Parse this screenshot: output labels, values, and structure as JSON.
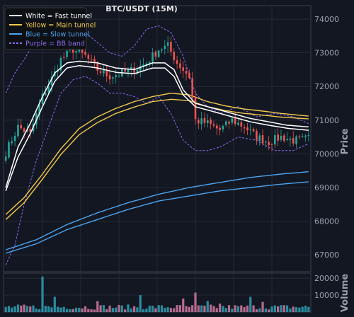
{
  "chart_data": {
    "type": "line",
    "title": "BTC/USDT (15M)",
    "ylabel": "Price",
    "ylabel_volume": "Volume",
    "ylim": [
      66500,
      74400
    ],
    "yticks": [
      67000,
      68000,
      69000,
      70000,
      71000,
      72000,
      73000,
      74000
    ],
    "vol_ylim": [
      0,
      23000
    ],
    "vol_yticks": [
      10000,
      20000
    ],
    "n_points": 100,
    "grid": true,
    "legend_position": "top-left",
    "legend": [
      {
        "label": "White = Fast tunnel",
        "color": "#ffffff",
        "style": "solid"
      },
      {
        "label": "Yellow = Main tunnel",
        "color": "#f2c94c",
        "style": "solid"
      },
      {
        "label": "Blue = Slow tunnel",
        "color": "#4da3ee",
        "style": "solid"
      },
      {
        "label": "Purple = BB band",
        "color": "#8b6cf0",
        "style": "dashed"
      }
    ],
    "close_anchors": [
      [
        0,
        70050
      ],
      [
        4,
        70800
      ],
      [
        8,
        70600
      ],
      [
        12,
        71700
      ],
      [
        16,
        72400
      ],
      [
        18,
        72800
      ],
      [
        22,
        73100
      ],
      [
        26,
        72900
      ],
      [
        30,
        72500
      ],
      [
        34,
        72300
      ],
      [
        38,
        72400
      ],
      [
        42,
        72500
      ],
      [
        46,
        72700
      ],
      [
        50,
        73100
      ],
      [
        53,
        73200
      ],
      [
        56,
        72700
      ],
      [
        60,
        72300
      ],
      [
        62,
        71000
      ],
      [
        66,
        70900
      ],
      [
        70,
        70700
      ],
      [
        74,
        71000
      ],
      [
        78,
        70800
      ],
      [
        82,
        70500
      ],
      [
        86,
        70350
      ],
      [
        90,
        70500
      ],
      [
        94,
        70400
      ],
      [
        99,
        70450
      ]
    ],
    "fast_upper": [
      [
        0,
        69000
      ],
      [
        4,
        70200
      ],
      [
        8,
        70900
      ],
      [
        12,
        71700
      ],
      [
        16,
        72400
      ],
      [
        20,
        72700
      ],
      [
        24,
        72750
      ],
      [
        30,
        72700
      ],
      [
        36,
        72550
      ],
      [
        42,
        72500
      ],
      [
        48,
        72700
      ],
      [
        52,
        72700
      ],
      [
        55,
        72500
      ],
      [
        58,
        71900
      ],
      [
        62,
        71500
      ],
      [
        68,
        71350
      ],
      [
        74,
        71200
      ],
      [
        80,
        71050
      ],
      [
        86,
        70950
      ],
      [
        92,
        70850
      ],
      [
        99,
        70800
      ]
    ],
    "fast_lower": [
      [
        0,
        68900
      ],
      [
        4,
        69900
      ],
      [
        8,
        70600
      ],
      [
        12,
        71400
      ],
      [
        16,
        72150
      ],
      [
        20,
        72550
      ],
      [
        24,
        72620
      ],
      [
        30,
        72550
      ],
      [
        36,
        72420
      ],
      [
        42,
        72380
      ],
      [
        48,
        72550
      ],
      [
        52,
        72550
      ],
      [
        55,
        72300
      ],
      [
        58,
        71750
      ],
      [
        62,
        71400
      ],
      [
        68,
        71250
      ],
      [
        74,
        71100
      ],
      [
        80,
        70950
      ],
      [
        86,
        70850
      ],
      [
        92,
        70760
      ],
      [
        99,
        70700
      ]
    ],
    "main_upper": [
      [
        0,
        68200
      ],
      [
        6,
        68700
      ],
      [
        12,
        69400
      ],
      [
        18,
        70150
      ],
      [
        24,
        70750
      ],
      [
        30,
        71100
      ],
      [
        36,
        71350
      ],
      [
        42,
        71550
      ],
      [
        48,
        71700
      ],
      [
        54,
        71800
      ],
      [
        60,
        71750
      ],
      [
        66,
        71550
      ],
      [
        72,
        71420
      ],
      [
        78,
        71330
      ],
      [
        84,
        71270
      ],
      [
        90,
        71200
      ],
      [
        99,
        71120
      ]
    ],
    "main_lower": [
      [
        0,
        68050
      ],
      [
        6,
        68550
      ],
      [
        12,
        69250
      ],
      [
        18,
        69980
      ],
      [
        24,
        70570
      ],
      [
        30,
        70930
      ],
      [
        36,
        71200
      ],
      [
        42,
        71390
      ],
      [
        48,
        71550
      ],
      [
        54,
        71620
      ],
      [
        60,
        71580
      ],
      [
        66,
        71400
      ],
      [
        72,
        71280
      ],
      [
        78,
        71200
      ],
      [
        84,
        71150
      ],
      [
        90,
        71090
      ],
      [
        99,
        71040
      ]
    ],
    "slow_upper": [
      [
        0,
        67150
      ],
      [
        10,
        67450
      ],
      [
        20,
        67900
      ],
      [
        30,
        68250
      ],
      [
        40,
        68550
      ],
      [
        50,
        68800
      ],
      [
        60,
        69000
      ],
      [
        70,
        69150
      ],
      [
        80,
        69300
      ],
      [
        90,
        69400
      ],
      [
        99,
        69470
      ]
    ],
    "slow_lower": [
      [
        0,
        67050
      ],
      [
        10,
        67330
      ],
      [
        20,
        67750
      ],
      [
        30,
        68050
      ],
      [
        40,
        68350
      ],
      [
        50,
        68600
      ],
      [
        60,
        68750
      ],
      [
        70,
        68900
      ],
      [
        80,
        69000
      ],
      [
        90,
        69100
      ],
      [
        99,
        69170
      ]
    ],
    "bb_upper": [
      [
        0,
        71800
      ],
      [
        3,
        72400
      ],
      [
        6,
        72800
      ],
      [
        10,
        73400
      ],
      [
        14,
        73500
      ],
      [
        18,
        73900
      ],
      [
        22,
        73800
      ],
      [
        26,
        73600
      ],
      [
        30,
        73300
      ],
      [
        34,
        73000
      ],
      [
        38,
        72900
      ],
      [
        42,
        73200
      ],
      [
        46,
        73700
      ],
      [
        50,
        73800
      ],
      [
        54,
        73600
      ],
      [
        58,
        72900
      ],
      [
        62,
        71800
      ],
      [
        66,
        71400
      ],
      [
        70,
        71200
      ],
      [
        76,
        71400
      ],
      [
        82,
        71100
      ],
      [
        88,
        71200
      ],
      [
        94,
        71100
      ],
      [
        99,
        70900
      ]
    ],
    "bb_lower": [
      [
        0,
        66700
      ],
      [
        3,
        67300
      ],
      [
        6,
        68500
      ],
      [
        10,
        69800
      ],
      [
        14,
        70800
      ],
      [
        18,
        71800
      ],
      [
        22,
        72200
      ],
      [
        26,
        72300
      ],
      [
        30,
        72100
      ],
      [
        34,
        71800
      ],
      [
        38,
        71800
      ],
      [
        42,
        71700
      ],
      [
        46,
        71500
      ],
      [
        50,
        71700
      ],
      [
        54,
        71200
      ],
      [
        58,
        70400
      ],
      [
        62,
        70100
      ],
      [
        66,
        70100
      ],
      [
        70,
        70200
      ],
      [
        76,
        70500
      ],
      [
        82,
        70400
      ],
      [
        88,
        70100
      ],
      [
        94,
        70100
      ],
      [
        99,
        70300
      ]
    ],
    "volume_spikes": [
      [
        12,
        21000
      ],
      [
        16,
        9000
      ],
      [
        30,
        6500
      ],
      [
        44,
        10000
      ],
      [
        58,
        8000
      ],
      [
        62,
        11500
      ],
      [
        66,
        6500
      ],
      [
        70,
        5000
      ],
      [
        80,
        9000
      ],
      [
        84,
        6000
      ]
    ],
    "colors": {
      "up": "#26a69a",
      "down": "#ef5350",
      "volume_up": "#2b8b9e",
      "volume_down": "#b56a8c",
      "fast": "#ffffff",
      "main": "#f2c94c",
      "slow": "#4da3ee",
      "bb": "#8b6cf0",
      "background": "#131722",
      "grid": "#2a2e39"
    }
  }
}
